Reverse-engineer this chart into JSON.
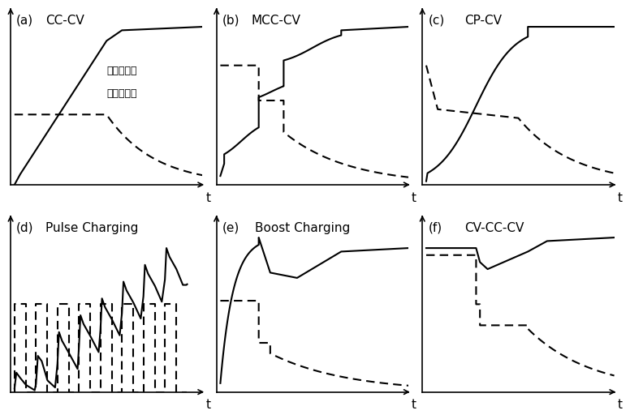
{
  "background_color": "#ffffff",
  "subplot_labels": [
    "(a)",
    "(b)",
    "(c)",
    "(d)",
    "(e)",
    "(f)"
  ],
  "subplot_titles": [
    "CC-CV",
    "MCC-CV",
    "CP-CV",
    "Pulse Charging",
    "Boost Charging",
    "CV-CC-CV"
  ],
  "legend_solid": "实线：电压",
  "legend_dash": "虚线：电流",
  "line_color": "#000000"
}
